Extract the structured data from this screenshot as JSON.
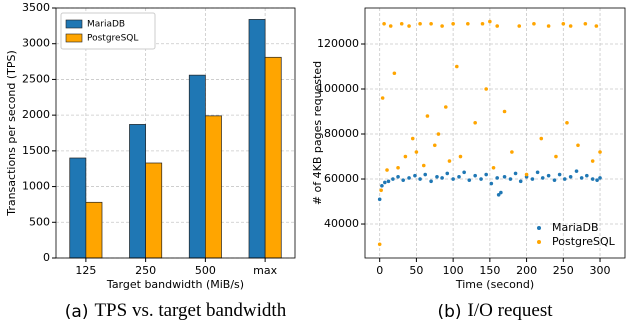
{
  "chart_data": [
    {
      "type": "bar",
      "label": "(a)",
      "caption": "TPS vs. target bandwidth",
      "x_label": "Target bandwidth (MiB/s)",
      "y_label": "Transactions per second (TPS)",
      "categories": [
        "125",
        "250",
        "500",
        "max"
      ],
      "series": [
        {
          "name": "MariaDB",
          "color": "#1f77b4",
          "values": [
            1400,
            1870,
            2560,
            3340
          ]
        },
        {
          "name": "PostgreSQL",
          "color": "#ffa500",
          "values": [
            780,
            1330,
            1990,
            2810
          ]
        }
      ],
      "ylim": [
        0,
        3500
      ],
      "yticks": [
        0,
        500,
        1000,
        1500,
        2000,
        2500,
        3000,
        3500
      ],
      "grid": true,
      "legend": "upper left"
    },
    {
      "type": "scatter",
      "label": "(b)",
      "caption": "I/O request",
      "x_label": "Time (second)",
      "y_label": "# of 4KB pages requested",
      "series": [
        {
          "name": "MariaDB",
          "color": "#1f77b4",
          "x": [
            0,
            3,
            7,
            12,
            18,
            25,
            32,
            40,
            48,
            55,
            62,
            70,
            78,
            85,
            92,
            100,
            108,
            115,
            122,
            130,
            138,
            145,
            152,
            160,
            162,
            165,
            170,
            178,
            185,
            192,
            200,
            208,
            215,
            222,
            230,
            238,
            245,
            252,
            260,
            268,
            275,
            282,
            290,
            296,
            300
          ],
          "values": [
            51000,
            57000,
            58500,
            59000,
            60000,
            61000,
            59500,
            60500,
            61500,
            60000,
            62000,
            59000,
            61000,
            60500,
            62500,
            60000,
            61000,
            63000,
            59500,
            61500,
            60000,
            62000,
            58000,
            60500,
            53000,
            54000,
            61000,
            60000,
            62500,
            59000,
            61000,
            60000,
            63000,
            60500,
            61500,
            59500,
            62000,
            60000,
            61000,
            63500,
            60500,
            61500,
            60000,
            59500,
            60500
          ]
        },
        {
          "name": "PostgreSQL",
          "color": "#ffa500",
          "x": [
            0,
            2,
            4,
            6,
            10,
            15,
            20,
            25,
            30,
            35,
            40,
            45,
            50,
            55,
            60,
            65,
            70,
            75,
            80,
            85,
            90,
            95,
            100,
            105,
            110,
            120,
            130,
            140,
            145,
            150,
            155,
            160,
            170,
            180,
            190,
            200,
            210,
            220,
            230,
            240,
            250,
            255,
            260,
            270,
            280,
            290,
            295,
            300
          ],
          "values": [
            31000,
            55000,
            96000,
            129000,
            64000,
            128000,
            107000,
            65000,
            129000,
            70000,
            128000,
            78000,
            72000,
            129000,
            66000,
            88000,
            129000,
            75000,
            80000,
            128000,
            92000,
            68000,
            129000,
            110000,
            70000,
            129000,
            85000,
            129000,
            100000,
            130000,
            65000,
            128000,
            90000,
            72000,
            128000,
            62000,
            129000,
            78000,
            128000,
            70000,
            129000,
            85000,
            128000,
            75000,
            129000,
            68000,
            128000,
            72000
          ]
        }
      ],
      "xlim": [
        -20,
        334
      ],
      "xticks": [
        0,
        50,
        100,
        150,
        200,
        250,
        300
      ],
      "ylim": [
        24900,
        136000
      ],
      "yticks": [
        40000,
        60000,
        80000,
        100000,
        120000
      ],
      "grid": true,
      "legend": "lower right"
    }
  ]
}
